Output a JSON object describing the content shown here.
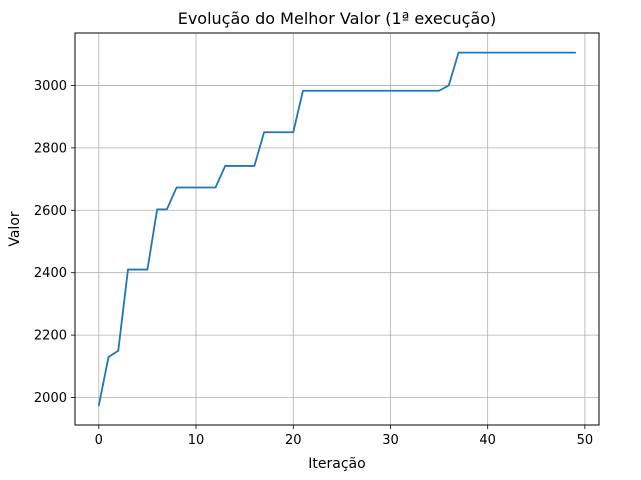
{
  "chart_data": {
    "type": "line",
    "title": "Evolução do Melhor Valor (1ª execução)",
    "xlabel": "Iteração",
    "ylabel": "Valor",
    "xlim": [
      -2.45,
      51.45
    ],
    "ylim": [
      1912,
      3168
    ],
    "xticks": [
      0,
      10,
      20,
      30,
      40,
      50
    ],
    "yticks": [
      2000,
      2200,
      2400,
      2600,
      2800,
      3000
    ],
    "grid": true,
    "series": [
      {
        "color": "#1f77b4",
        "x": [
          0,
          1,
          2,
          3,
          4,
          5,
          6,
          7,
          8,
          9,
          10,
          11,
          12,
          13,
          14,
          15,
          16,
          17,
          18,
          19,
          20,
          21,
          22,
          23,
          24,
          25,
          26,
          27,
          28,
          29,
          30,
          31,
          32,
          33,
          34,
          35,
          36,
          37,
          38,
          39,
          40,
          41,
          42,
          43,
          44,
          45,
          46,
          47,
          48,
          49
        ],
        "values": [
          1975,
          2130,
          2150,
          2410,
          2410,
          2410,
          2603,
          2603,
          2673,
          2673,
          2673,
          2673,
          2673,
          2742,
          2742,
          2742,
          2742,
          2850,
          2850,
          2850,
          2850,
          2983,
          2983,
          2983,
          2983,
          2983,
          2983,
          2983,
          2983,
          2983,
          2983,
          2983,
          2983,
          2983,
          2983,
          2983,
          3000,
          3105,
          3105,
          3105,
          3105,
          3105,
          3105,
          3105,
          3105,
          3105,
          3105,
          3105,
          3105,
          3105
        ]
      }
    ]
  }
}
